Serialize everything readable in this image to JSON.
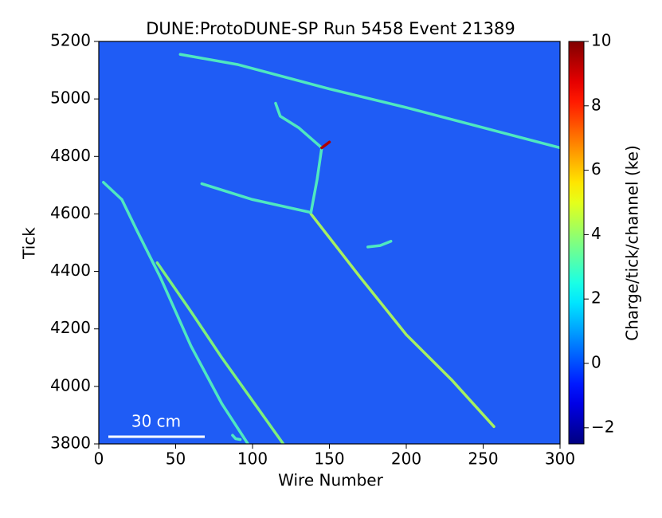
{
  "chart_data": {
    "type": "line",
    "title": "DUNE:ProtoDUNE-SP Run 5458 Event 21389",
    "x_label": "Wire Number",
    "y_label": "Tick",
    "colorbar_label": "Charge/tick/channel (ke)",
    "annotation": "30 cm",
    "background": "#1f5cf5",
    "colormap": "jet",
    "xlim": [
      0,
      300
    ],
    "xticks": [
      0,
      50,
      100,
      150,
      200,
      250,
      300
    ],
    "ylim": [
      3800,
      5200
    ],
    "yticks": [
      3800,
      4000,
      4200,
      4400,
      4600,
      4800,
      5000,
      5200
    ],
    "clim": [
      -2.5,
      10
    ],
    "cticks": [
      {
        "value": -2,
        "label": "−2"
      },
      0,
      2,
      4,
      6,
      8,
      10
    ],
    "series": [
      {
        "color": "#4fe8c0",
        "x": [
          53,
          90,
          150,
          200,
          250,
          300
        ],
        "y": [
          5155,
          5120,
          5035,
          4970,
          4900,
          4830
        ]
      },
      {
        "color": "#4fe8c0",
        "x": [
          3,
          15,
          25,
          40,
          60,
          80,
          97
        ],
        "y": [
          4710,
          4650,
          4540,
          4380,
          4140,
          3940,
          3800
        ]
      },
      {
        "color": "#7ef07a",
        "x": [
          38,
          60,
          80,
          100,
          120
        ],
        "y": [
          4430,
          4260,
          4100,
          3950,
          3800
        ]
      },
      {
        "color": "#4fe8c0",
        "x": [
          67,
          100,
          138
        ],
        "y": [
          4705,
          4650,
          4605
        ]
      },
      {
        "color": "#a6f060",
        "x": [
          138,
          170,
          200,
          230,
          257
        ],
        "y": [
          4600,
          4380,
          4180,
          4020,
          3860
        ]
      },
      {
        "color": "#4fe8c0",
        "x": [
          138,
          142,
          145
        ],
        "y": [
          4605,
          4720,
          4830
        ]
      },
      {
        "color": "#4fe8c0",
        "x": [
          145,
          130,
          118,
          115
        ],
        "y": [
          4830,
          4900,
          4940,
          4985
        ]
      },
      {
        "color": "#b00000",
        "x": [
          145,
          150
        ],
        "y": [
          4830,
          4850
        ]
      },
      {
        "color": "#4fe8c0",
        "x": [
          175,
          183,
          190
        ],
        "y": [
          4485,
          4490,
          4505
        ]
      },
      {
        "color": "#4fe8c0",
        "x": [
          87,
          89,
          92
        ],
        "y": [
          3830,
          3818,
          3815
        ]
      }
    ]
  }
}
